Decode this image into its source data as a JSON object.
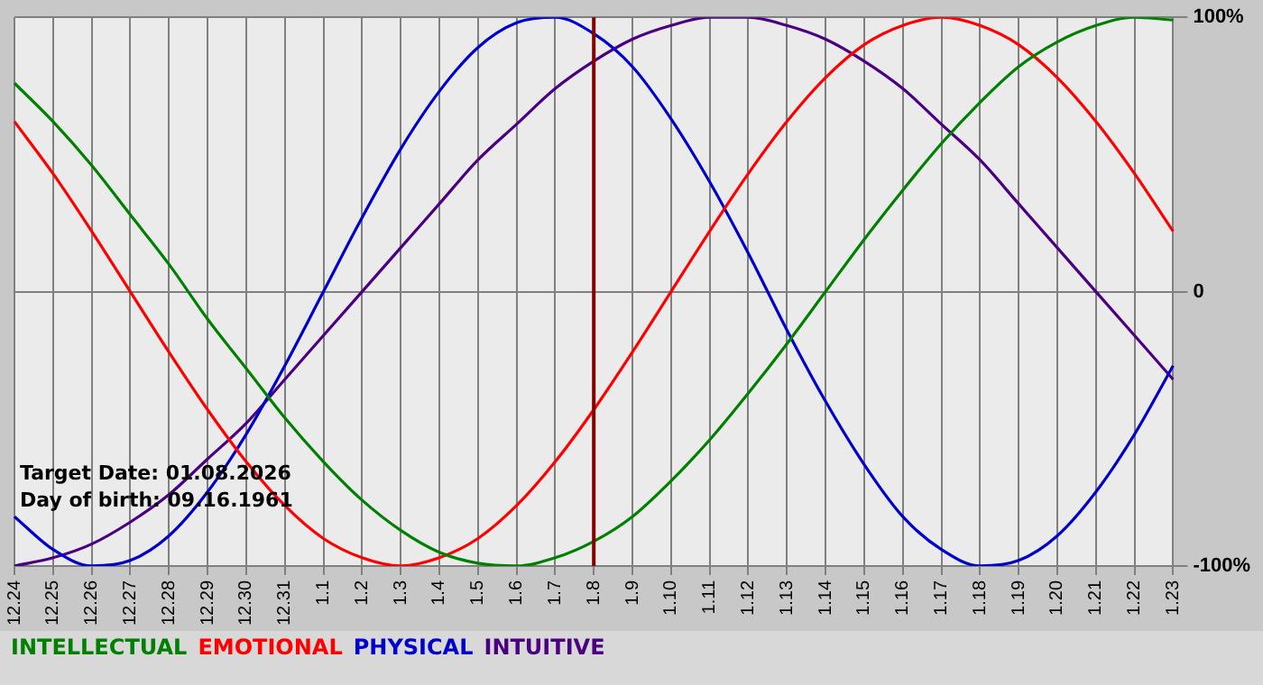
{
  "chart_data": {
    "type": "line",
    "categories": [
      "12.24",
      "12.25",
      "12.26",
      "12.27",
      "12.28",
      "12.29",
      "12.30",
      "12.31",
      "1.1",
      "1.2",
      "1.3",
      "1.4",
      "1.5",
      "1.6",
      "1.7",
      "1.8",
      "1.9",
      "1.10",
      "1.11",
      "1.12",
      "1.13",
      "1.14",
      "1.15",
      "1.16",
      "1.17",
      "1.18",
      "1.19",
      "1.20",
      "1.21",
      "1.22",
      "1.23"
    ],
    "series": [
      {
        "name": "INTELLECTUAL",
        "color": "#008000",
        "values": [
          76,
          62,
          46,
          28,
          10,
          -10,
          -28,
          -46,
          -62,
          -76,
          -87,
          -95,
          -99,
          -100,
          -97,
          -91,
          -82,
          -69,
          -54,
          -37,
          -19,
          0,
          19,
          37,
          54,
          69,
          82,
          91,
          97,
          100,
          99
        ]
      },
      {
        "name": "EMOTIONAL",
        "color": "#ff0000",
        "values": [
          62,
          43,
          22,
          0,
          -22,
          -43,
          -62,
          -78,
          -90,
          -97,
          -100,
          -97,
          -90,
          -78,
          -62,
          -43,
          -22,
          0,
          22,
          43,
          62,
          78,
          90,
          97,
          100,
          97,
          90,
          78,
          62,
          43,
          22
        ]
      },
      {
        "name": "PHYSICAL",
        "color": "#0000cc",
        "values": [
          -82,
          -94,
          -100,
          -98,
          -89,
          -73,
          -52,
          -27,
          0,
          27,
          52,
          73,
          89,
          98,
          100,
          94,
          82,
          63,
          40,
          14,
          -14,
          -40,
          -63,
          -82,
          -94,
          -100,
          -98,
          -89,
          -73,
          -52,
          -27
        ]
      },
      {
        "name": "INTUITIVE",
        "color": "#4b0082",
        "values": [
          -100,
          -97,
          -92,
          -84,
          -74,
          -61,
          -48,
          -32,
          -16,
          0,
          16,
          32,
          48,
          61,
          74,
          84,
          92,
          97,
          100,
          100,
          97,
          92,
          84,
          74,
          61,
          48,
          32,
          16,
          0,
          -16,
          -32
        ]
      }
    ],
    "ylim": [
      -100,
      100
    ],
    "yticks": [
      {
        "value": 100,
        "label": "100%"
      },
      0,
      {
        "value": -100,
        "label": "-100%"
      }
    ],
    "ref_lines": [
      {
        "axis": "x",
        "value": "1.8",
        "color": "#800000"
      }
    ],
    "annotations": [
      "Target Date: 01.08.2026",
      "Day of birth: 09.16.1961"
    ],
    "grid": true,
    "legend": "bottom left",
    "marker": "none",
    "line_style": "solid"
  }
}
